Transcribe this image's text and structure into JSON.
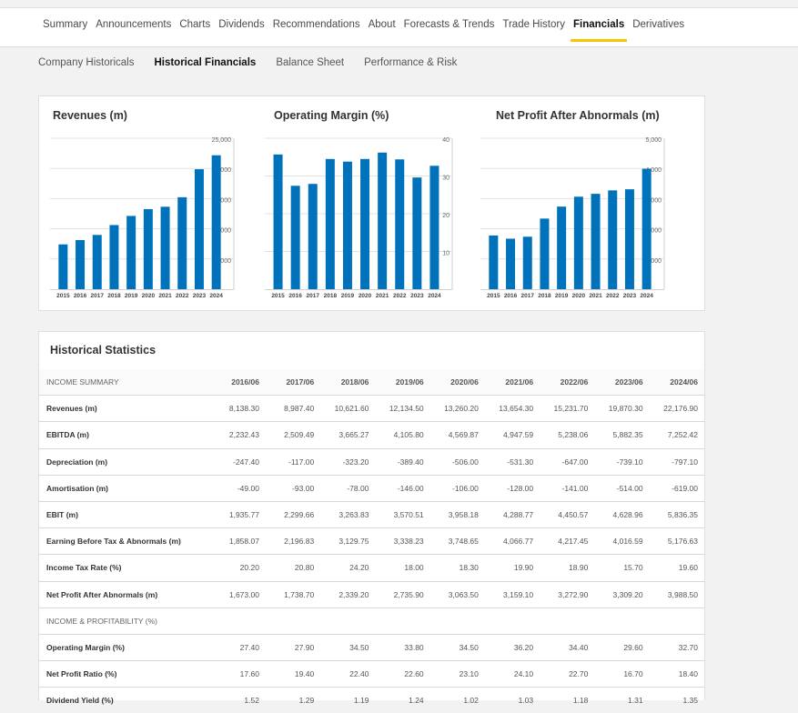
{
  "nav": {
    "tabs": [
      "Summary",
      "Announcements",
      "Charts",
      "Dividends",
      "Recommendations",
      "About",
      "Forecasts & Trends",
      "Trade History",
      "Financials",
      "Derivatives"
    ],
    "active": "Financials"
  },
  "subnav": {
    "tabs": [
      "Company Historicals",
      "Historical Financials",
      "Balance Sheet",
      "Performance & Risk"
    ],
    "active": "Historical Financials"
  },
  "bar_color": "#0072bb",
  "chart_data": [
    {
      "type": "bar",
      "title": "Revenues (m)",
      "categories": [
        "2015",
        "2016",
        "2017",
        "2018",
        "2019",
        "2020",
        "2021",
        "2022",
        "2023",
        "2024"
      ],
      "values": [
        7420,
        8138.3,
        8987.4,
        10621.6,
        12134.5,
        13260.2,
        13654.3,
        15231.7,
        19870.3,
        22176.9
      ],
      "ylim": [
        0,
        25000
      ],
      "yticks": [
        5000,
        10000,
        15000,
        20000,
        25000
      ],
      "ytick_labels": [
        "5,000",
        "10,000",
        "15,000",
        "20,000",
        "25,000"
      ],
      "axis_side": "right"
    },
    {
      "type": "bar",
      "title": "Operating Margin (%)",
      "categories": [
        "2015",
        "2016",
        "2017",
        "2018",
        "2019",
        "2020",
        "2021",
        "2022",
        "2023",
        "2024"
      ],
      "values": [
        35.7,
        27.4,
        27.9,
        34.5,
        33.8,
        34.5,
        36.2,
        34.4,
        29.6,
        32.7
      ],
      "ylim": [
        0,
        40
      ],
      "yticks": [
        10,
        20,
        30,
        40
      ],
      "ytick_labels": [
        "10",
        "20",
        "30",
        "40"
      ],
      "axis_side": "right"
    },
    {
      "type": "bar",
      "title": "Net Profit After Abnormals (m)",
      "categories": [
        "2015",
        "2016",
        "2017",
        "2018",
        "2019",
        "2020",
        "2021",
        "2022",
        "2023",
        "2024"
      ],
      "values": [
        1780,
        1673,
        1738.7,
        2339.2,
        2735.9,
        3063.5,
        3159.1,
        3272.9,
        3309.2,
        3988.5
      ],
      "ylim": [
        0,
        5000
      ],
      "yticks": [
        1000,
        2000,
        3000,
        4000,
        5000
      ],
      "ytick_labels": [
        "1,000",
        "2,000",
        "3,000",
        "4,000",
        "5,000"
      ],
      "axis_side": "right"
    }
  ],
  "table": {
    "title": "Historical Statistics",
    "header": [
      "INCOME SUMMARY",
      "2016/06",
      "2017/06",
      "2018/06",
      "2019/06",
      "2020/06",
      "2021/06",
      "2022/06",
      "2023/06",
      "2024/06"
    ],
    "rows": [
      {
        "label": "Revenues (m)",
        "values": [
          "8,138.30",
          "8,987.40",
          "10,621.60",
          "12,134.50",
          "13,260.20",
          "13,654.30",
          "15,231.70",
          "19,870.30",
          "22,176.90"
        ]
      },
      {
        "label": "EBITDA (m)",
        "values": [
          "2,232.43",
          "2,509.49",
          "3,665.27",
          "4,105.80",
          "4,569.87",
          "4,947.59",
          "5,238.06",
          "5,882.35",
          "7,252.42"
        ]
      },
      {
        "label": "Depreciation (m)",
        "values": [
          "-247.40",
          "-117.00",
          "-323.20",
          "-389.40",
          "-506.00",
          "-531.30",
          "-647.00",
          "-739.10",
          "-797.10"
        ]
      },
      {
        "label": "Amortisation (m)",
        "values": [
          "-49.00",
          "-93.00",
          "-78.00",
          "-146.00",
          "-106.00",
          "-128.00",
          "-141.00",
          "-514.00",
          "-619.00"
        ]
      },
      {
        "label": "EBIT (m)",
        "values": [
          "1,935.77",
          "2,299.66",
          "3,263.83",
          "3,570.51",
          "3,958.18",
          "4,288.77",
          "4,450.57",
          "4,628.96",
          "5,836.35"
        ]
      },
      {
        "label": "Earning Before Tax & Abnormals (m)",
        "values": [
          "1,858.07",
          "2,196.83",
          "3,129.75",
          "3,338.23",
          "3,748.65",
          "4,066.77",
          "4,217.45",
          "4,016.59",
          "5,176.63"
        ]
      },
      {
        "label": "Income Tax Rate (%)",
        "values": [
          "20.20",
          "20.80",
          "24.20",
          "18.00",
          "18.30",
          "19.90",
          "18.90",
          "15.70",
          "19.60"
        ]
      },
      {
        "label": "Net Profit After Abnormals (m)",
        "values": [
          "1,673.00",
          "1,738.70",
          "2,339.20",
          "2,735.90",
          "3,063.50",
          "3,159.10",
          "3,272.90",
          "3,309.20",
          "3,988.50"
        ]
      },
      {
        "label": "INCOME & PROFITABILITY (%)",
        "section": true,
        "values": [
          "",
          "",
          "",
          "",
          "",
          "",
          "",
          "",
          ""
        ]
      },
      {
        "label": "Operating Margin (%)",
        "values": [
          "27.40",
          "27.90",
          "34.50",
          "33.80",
          "34.50",
          "36.20",
          "34.40",
          "29.60",
          "32.70"
        ]
      },
      {
        "label": "Net Profit Ratio (%)",
        "values": [
          "17.60",
          "19.40",
          "22.40",
          "22.60",
          "23.10",
          "24.10",
          "22.70",
          "16.70",
          "18.40"
        ]
      },
      {
        "label": "Dividend Yield (%)",
        "values": [
          "1.52",
          "1.29",
          "1.19",
          "1.24",
          "1.02",
          "1.03",
          "1.18",
          "1.31",
          "1.35"
        ]
      }
    ]
  }
}
